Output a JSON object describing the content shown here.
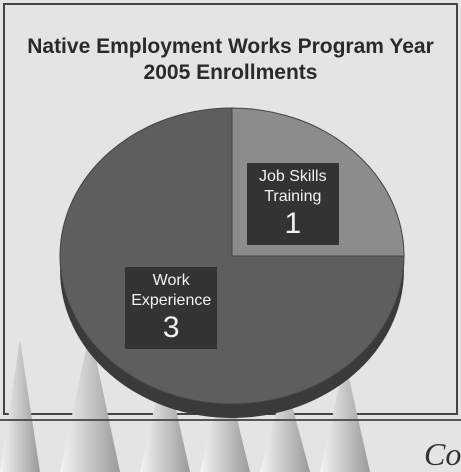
{
  "chart_data": {
    "type": "pie",
    "title": "Native Employment Works Program Year 2005 Enrollments",
    "categories": [
      "Job Skills Training",
      "Work Experience"
    ],
    "values": [
      1,
      3
    ],
    "colors": [
      "#8c8c8c",
      "#5e5e5e"
    ]
  },
  "footer_text": "Co"
}
